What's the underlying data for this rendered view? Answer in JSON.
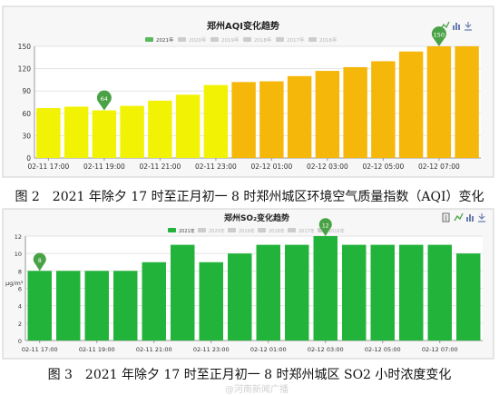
{
  "chart_data": [
    {
      "type": "bar",
      "title": "郑州AQI变化趋势",
      "legend": [
        "2021年",
        "2020年",
        "2019年",
        "2018年",
        "2017年",
        "2016年"
      ],
      "legend_placement": "top-center",
      "categories": [
        "02-11 17:00",
        "02-11 18:00",
        "02-11 19:00",
        "02-11 20:00",
        "02-11 21:00",
        "02-11 22:00",
        "02-11 23:00",
        "02-12 00:00",
        "02-12 01:00",
        "02-12 02:00",
        "02-12 03:00",
        "02-12 04:00",
        "02-12 05:00",
        "02-12 06:00",
        "02-12 07:00",
        "02-12 08:00"
      ],
      "x_tick_labels": [
        "02-11 17:00",
        "02-11 19:00",
        "02-11 21:00",
        "02-11 23:00",
        "02-12 01:00",
        "02-12 03:00",
        "02-12 05:00",
        "02-12 07:00"
      ],
      "series": [
        {
          "name": "2021年",
          "values": [
            67,
            69,
            64,
            70,
            77,
            85,
            98,
            102,
            103,
            110,
            117,
            122,
            130,
            143,
            150,
            150
          ]
        }
      ],
      "ylim": [
        0,
        150
      ],
      "yticks": [
        0,
        30,
        60,
        90,
        120,
        150
      ],
      "grid": true,
      "markers": [
        {
          "label": "64",
          "index": 2
        },
        {
          "label": "150",
          "index": 14
        }
      ],
      "colors": {
        "bar_yellow": "#f2f205",
        "bar_orange": "#f6b70b",
        "legend_active": "#5cb85c",
        "legend_inactive": "#cccccc",
        "marker": "#4aa246"
      }
    },
    {
      "type": "bar",
      "title": "郑州SO₂变化趋势",
      "ylabel": "μg/m³",
      "legend": [
        "2021年",
        "2020年",
        "2019年",
        "2018年",
        "2017年",
        "2016年"
      ],
      "legend_placement": "top-center",
      "categories": [
        "02-11 17:00",
        "02-11 18:00",
        "02-11 19:00",
        "02-11 20:00",
        "02-11 21:00",
        "02-11 22:00",
        "02-11 23:00",
        "02-12 00:00",
        "02-12 01:00",
        "02-12 02:00",
        "02-12 03:00",
        "02-12 04:00",
        "02-12 05:00",
        "02-12 06:00",
        "02-12 07:00",
        "02-12 08:00"
      ],
      "x_tick_labels": [
        "02-11 17:00",
        "02-11 19:00",
        "02-11 21:00",
        "02-11 23:00",
        "02-12 01:00",
        "02-12 03:00",
        "02-12 05:00",
        "02-12 07:00"
      ],
      "series": [
        {
          "name": "2021年",
          "values": [
            8,
            8,
            8,
            8,
            9,
            11,
            9,
            10,
            11,
            11,
            12,
            11,
            11,
            11,
            11,
            10
          ]
        }
      ],
      "ylim": [
        0,
        12
      ],
      "yticks": [
        0,
        2,
        4,
        6,
        8,
        10,
        12
      ],
      "grid": true,
      "markers": [
        {
          "label": "8",
          "index": 0
        },
        {
          "label": "12",
          "index": 10
        }
      ],
      "colors": {
        "bar": "#22b33a",
        "legend_active": "#22b33a",
        "legend_inactive": "#cccccc",
        "marker": "#4aa246"
      }
    }
  ],
  "captions": {
    "fig2": "图 2　2021 年除夕 17 时至正月初一 8 时郑州城区环境空气质量指数（AQI）变化",
    "fig3": "图 3　2021 年除夕 17 时至正月初一 8 时郑州城区 SO2 小时浓度变化"
  },
  "watermark": "@河南新闻广播"
}
